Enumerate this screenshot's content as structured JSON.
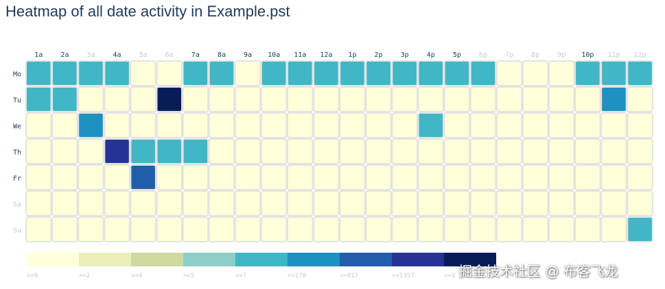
{
  "title": "Heatmap of all date activity in Example.pst",
  "watermark": "掘金技术社区 @ 布客飞龙",
  "chart_data": {
    "type": "heatmap",
    "title": "Heatmap of all date activity in Example.pst",
    "hours": [
      "1a",
      "2a",
      "3a",
      "4a",
      "5a",
      "6a",
      "7a",
      "8a",
      "9a",
      "10a",
      "11a",
      "12a",
      "1p",
      "2p",
      "3p",
      "4p",
      "5p",
      "6p",
      "7p",
      "8p",
      "9p",
      "10p",
      "11p",
      "12p"
    ],
    "hours_active": [
      true,
      true,
      false,
      true,
      false,
      false,
      true,
      true,
      true,
      true,
      true,
      true,
      true,
      true,
      true,
      true,
      true,
      false,
      false,
      false,
      false,
      true,
      false,
      false
    ],
    "days": [
      "Mo",
      "Tu",
      "We",
      "Th",
      "Fr",
      "Sa",
      "Su"
    ],
    "days_active": [
      true,
      true,
      true,
      true,
      true,
      false,
      false
    ],
    "bucket_index": [
      [
        4,
        4,
        4,
        4,
        0,
        0,
        4,
        4,
        0,
        4,
        4,
        4,
        4,
        4,
        4,
        4,
        4,
        4,
        0,
        0,
        0,
        4,
        4,
        4
      ],
      [
        4,
        4,
        0,
        0,
        0,
        8,
        0,
        0,
        0,
        0,
        0,
        0,
        0,
        0,
        0,
        0,
        0,
        0,
        0,
        0,
        0,
        0,
        5,
        0
      ],
      [
        0,
        0,
        5,
        0,
        0,
        0,
        0,
        0,
        0,
        0,
        0,
        0,
        0,
        0,
        0,
        4,
        0,
        0,
        0,
        0,
        0,
        0,
        0,
        0
      ],
      [
        0,
        0,
        0,
        7,
        4,
        4,
        4,
        0,
        0,
        0,
        0,
        0,
        0,
        0,
        0,
        0,
        0,
        0,
        0,
        0,
        0,
        0,
        0,
        0
      ],
      [
        0,
        0,
        0,
        0,
        6,
        0,
        0,
        0,
        0,
        0,
        0,
        0,
        0,
        0,
        0,
        0,
        0,
        0,
        0,
        0,
        0,
        0,
        0,
        0
      ],
      [
        0,
        0,
        0,
        0,
        0,
        0,
        0,
        0,
        0,
        0,
        0,
        0,
        0,
        0,
        0,
        0,
        0,
        0,
        0,
        0,
        0,
        0,
        0,
        0
      ],
      [
        0,
        0,
        0,
        0,
        0,
        0,
        0,
        0,
        0,
        0,
        0,
        0,
        0,
        0,
        0,
        0,
        0,
        0,
        0,
        0,
        0,
        0,
        0,
        4
      ]
    ],
    "legend": {
      "thresholds": [
        ">=0",
        ">=2",
        ">=4",
        ">=5",
        ">=7",
        ">=278",
        ">=817",
        ">=1357",
        ">=1"
      ],
      "colors": [
        "#ffffd9",
        "#eaeeb8",
        "#ced9a0",
        "#8ecdc6",
        "#41b6c4",
        "#1d91c0",
        "#225ea8",
        "#253494",
        "#081d58"
      ]
    },
    "colors": {
      "active_label": "#1a3d4a",
      "inactive_label": "#c8c8c8",
      "cell_border": "#e3e3e3"
    }
  }
}
